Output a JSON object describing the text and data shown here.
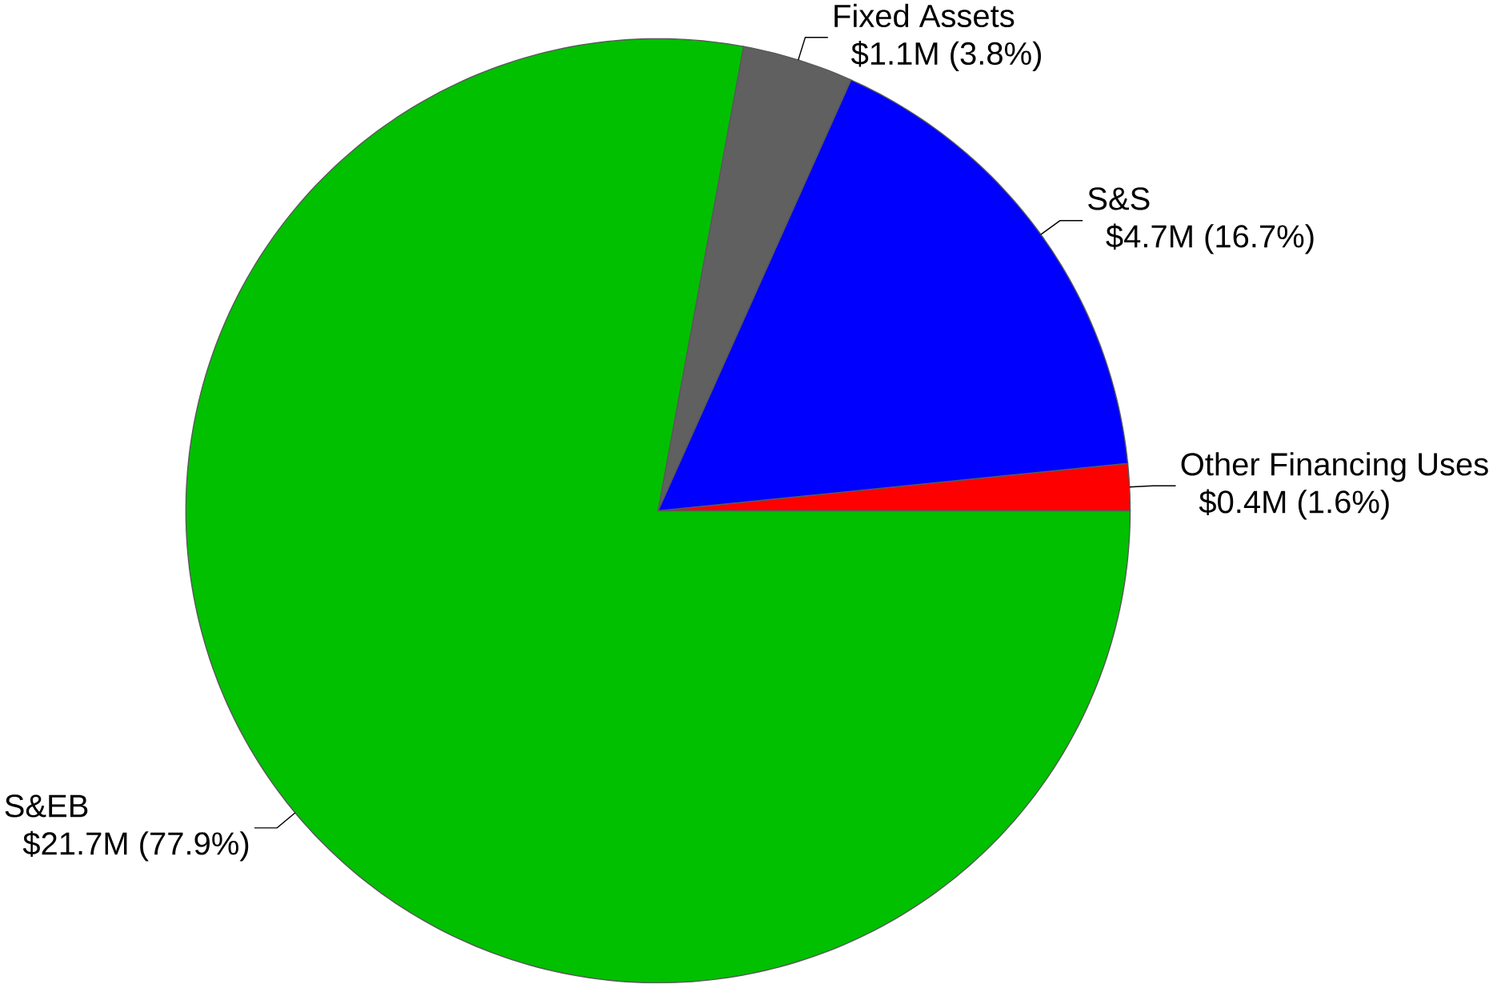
{
  "chart_data": {
    "type": "pie",
    "categories": [
      "Other Financing Uses",
      "S&S",
      "Fixed Assets",
      "S&EB"
    ],
    "values": [
      1.6,
      16.7,
      3.8,
      77.9
    ],
    "colors": [
      "#ff0000",
      "#0000ff",
      "#606060",
      "#00c000"
    ],
    "value_labels": [
      "$0.4M (1.6%)",
      "$4.7M (16.7%)",
      "$1.1M (3.8%)",
      "$21.7M (77.9%)"
    ]
  }
}
